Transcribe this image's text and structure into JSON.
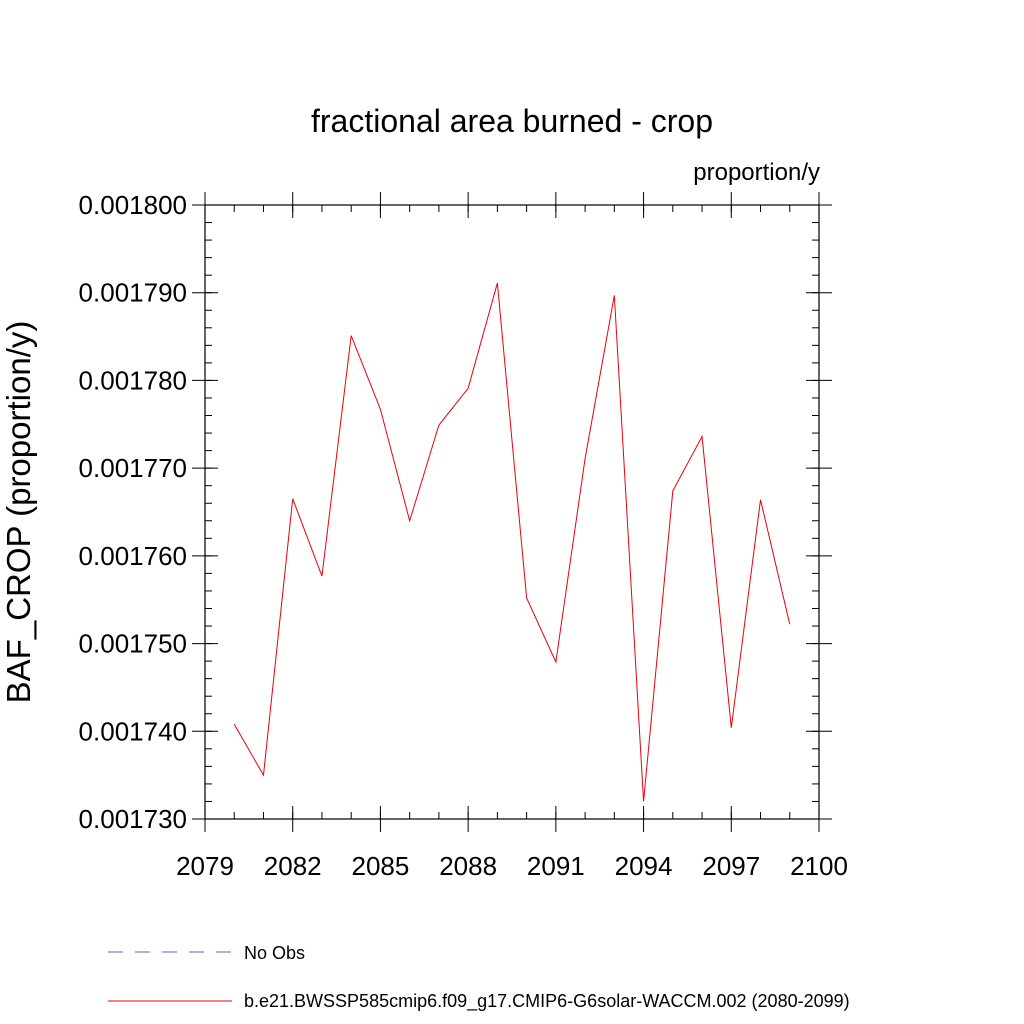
{
  "chart_data": {
    "type": "line",
    "title": "fractional area burned - crop",
    "units_label": "proportion/y",
    "ylabel": "BAF_CROP  (proportion/y)",
    "xlabel": "",
    "xlim": [
      2079,
      2100
    ],
    "ylim": [
      0.00173,
      0.0018
    ],
    "x_ticks": [
      2079,
      2082,
      2085,
      2088,
      2091,
      2094,
      2097,
      2100
    ],
    "x_tick_labels": [
      "2079",
      "2082",
      "2085",
      "2088",
      "2091",
      "2094",
      "2097",
      "2100"
    ],
    "y_ticks": [
      0.00173,
      0.00174,
      0.00175,
      0.00176,
      0.00177,
      0.00178,
      0.00179,
      0.0018
    ],
    "y_tick_labels": [
      "0.001730",
      "0.001740",
      "0.001750",
      "0.001760",
      "0.001770",
      "0.001780",
      "0.001790",
      "0.001800"
    ],
    "x_minor_step": 1,
    "y_minor_step": 2e-06,
    "grid": false,
    "legend_position": "bottom",
    "series": [
      {
        "name": "No Obs",
        "color": "#6a5acd",
        "dash": "dashed",
        "x": [],
        "values": []
      },
      {
        "name": "b.e21.BWSSP585cmip6.f09_g17.CMIP6-G6solar-WACCM.002 (2080-2099)",
        "color": "#e8000b",
        "dash": "solid",
        "x": [
          2080,
          2081,
          2082,
          2083,
          2084,
          2085,
          2086,
          2087,
          2088,
          2089,
          2090,
          2091,
          2092,
          2093,
          2094,
          2095,
          2096,
          2097,
          2098,
          2099
        ],
        "values": [
          0.0017408,
          0.001735,
          0.0017665,
          0.0017577,
          0.0017851,
          0.0017767,
          0.001764,
          0.0017749,
          0.0017791,
          0.0017911,
          0.0017552,
          0.0017479,
          0.0017711,
          0.0017897,
          0.001732,
          0.0017674,
          0.0017736,
          0.0017404,
          0.0017664,
          0.0017522
        ]
      }
    ]
  }
}
